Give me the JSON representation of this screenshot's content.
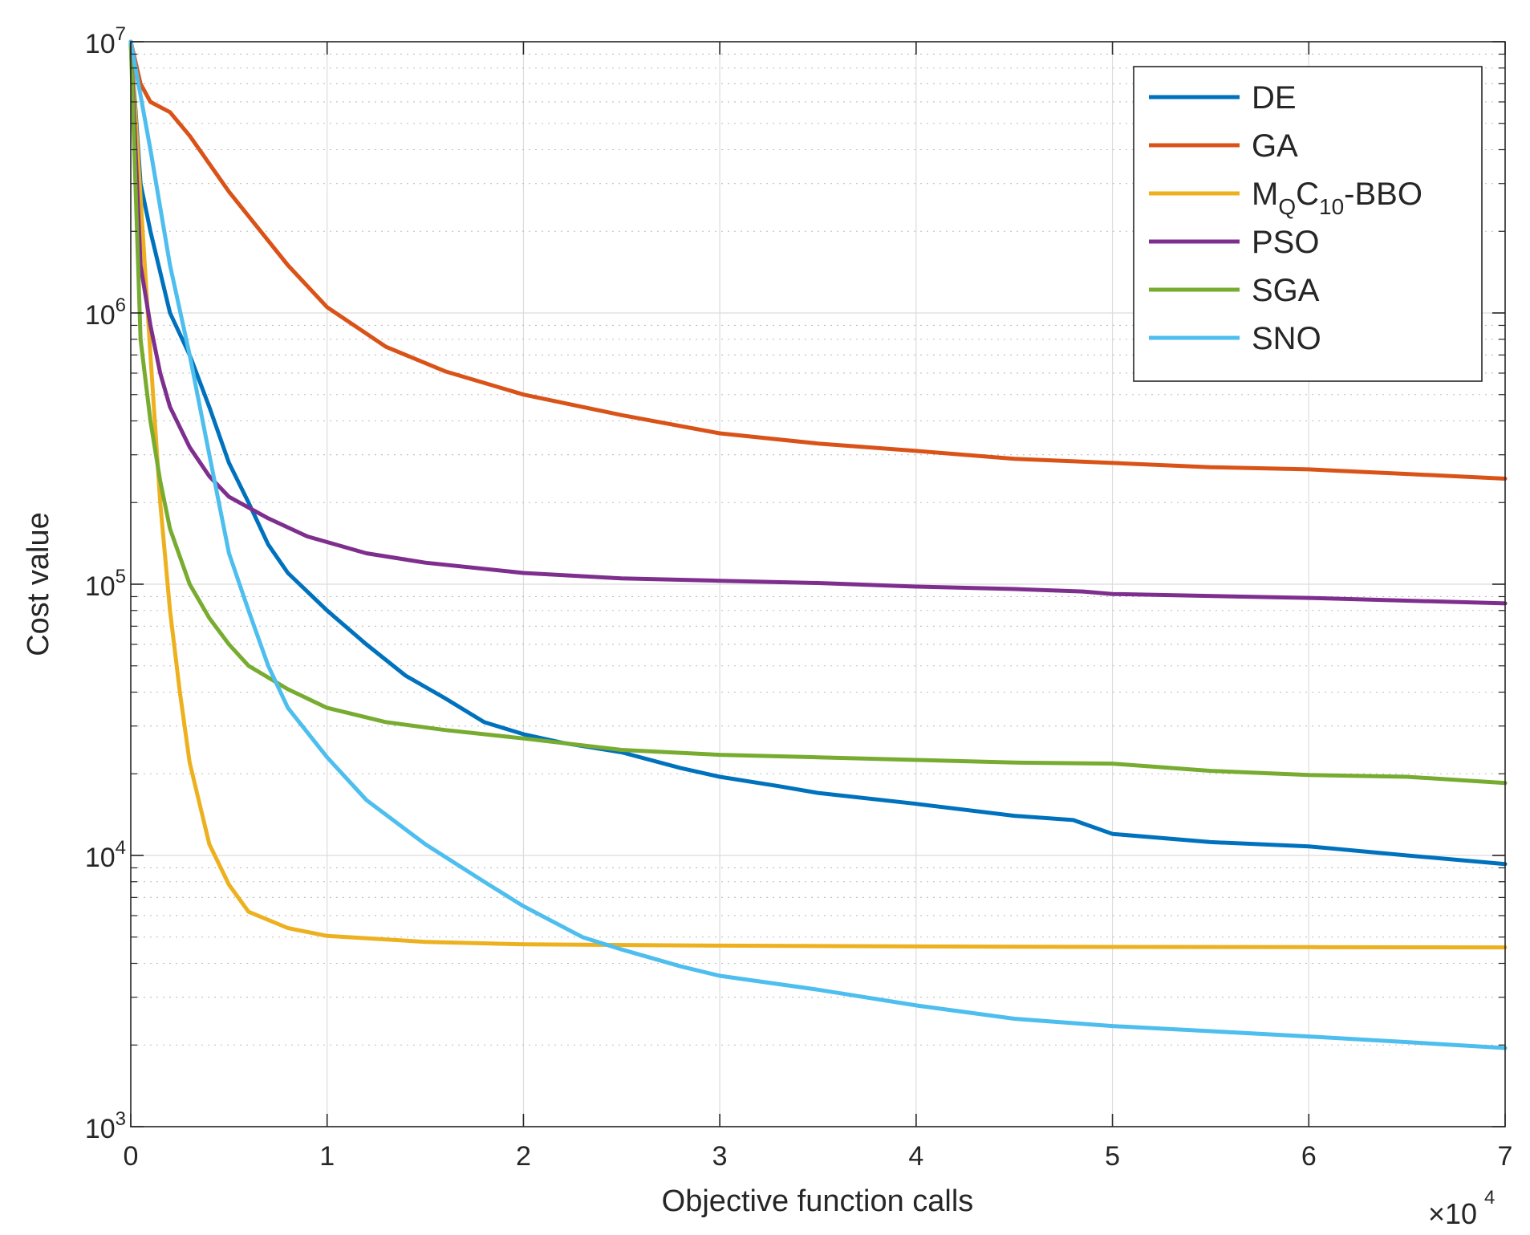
{
  "chart_data": {
    "type": "line",
    "title": "",
    "xlabel": "Objective function calls",
    "ylabel": "Cost value",
    "x_exponent_label": "×10",
    "x_exponent_power": "4",
    "xlim": [
      0,
      7
    ],
    "ylim": [
      1000,
      10000000
    ],
    "y_scale": "log",
    "grid": true,
    "x_ticks": [
      0,
      1,
      2,
      3,
      4,
      5,
      6,
      7
    ],
    "x_tick_labels": [
      "0",
      "1",
      "2",
      "3",
      "4",
      "5",
      "6",
      "7"
    ],
    "y_ticks": [
      {
        "value": 1000,
        "base": "10",
        "exp": "3"
      },
      {
        "value": 10000,
        "base": "10",
        "exp": "4"
      },
      {
        "value": 100000,
        "base": "10",
        "exp": "5"
      },
      {
        "value": 1000000,
        "base": "10",
        "exp": "6"
      },
      {
        "value": 10000000,
        "base": "10",
        "exp": "7"
      }
    ],
    "legend_position": "top-right",
    "series": [
      {
        "name": "DE",
        "color": "#0072BD",
        "x": [
          0,
          0.05,
          0.1,
          0.2,
          0.3,
          0.4,
          0.5,
          0.6,
          0.7,
          0.8,
          1.0,
          1.2,
          1.4,
          1.6,
          1.8,
          2.0,
          2.2,
          2.5,
          2.8,
          3.0,
          3.3,
          3.5,
          4.0,
          4.5,
          4.8,
          5.0,
          5.5,
          6.0,
          6.5,
          7.0
        ],
        "y": [
          10000000,
          3000000,
          2000000,
          1000000,
          700000,
          450000,
          280000,
          200000,
          140000,
          110000,
          80000,
          60000,
          46000,
          38000,
          31000,
          28000,
          26000,
          24000,
          21000,
          19500,
          18000,
          17000,
          15500,
          14000,
          13500,
          12000,
          11200,
          10800,
          10000,
          9300
        ]
      },
      {
        "name": "GA",
        "color": "#D95319",
        "x": [
          0,
          0.05,
          0.1,
          0.2,
          0.3,
          0.5,
          0.8,
          1.0,
          1.3,
          1.6,
          2.0,
          2.5,
          3.0,
          3.5,
          4.0,
          4.5,
          5.0,
          5.5,
          6.0,
          6.5,
          7.0
        ],
        "y": [
          10000000,
          7000000,
          6000000,
          5500000,
          4500000,
          2800000,
          1500000,
          1050000,
          750000,
          610000,
          500000,
          420000,
          360000,
          330000,
          310000,
          290000,
          280000,
          270000,
          265000,
          255000,
          245000
        ]
      },
      {
        "name": "M<sub>Q</sub>C<sub>10</sub>-BBO",
        "legend_main": "M",
        "legend_sub1": "Q",
        "legend_mid": "C",
        "legend_sub2": "10",
        "legend_tail": "-BBO",
        "color": "#EDB120",
        "x": [
          0,
          0.1,
          0.15,
          0.2,
          0.25,
          0.3,
          0.4,
          0.5,
          0.6,
          0.8,
          1.0,
          1.5,
          2.0,
          3.0,
          4.0,
          5.0,
          6.0,
          7.0
        ],
        "y": [
          10000000,
          700000,
          200000,
          80000,
          40000,
          22000,
          11000,
          7800,
          6200,
          5400,
          5050,
          4800,
          4700,
          4650,
          4620,
          4600,
          4590,
          4580
        ]
      },
      {
        "name": "PSO",
        "color": "#7E2F8E",
        "x": [
          0,
          0.05,
          0.1,
          0.15,
          0.2,
          0.3,
          0.4,
          0.5,
          0.7,
          0.9,
          1.2,
          1.5,
          2.0,
          2.5,
          3.0,
          3.5,
          4.0,
          4.5,
          4.85,
          5.0,
          6.0,
          7.0
        ],
        "y": [
          10000000,
          1500000,
          900000,
          600000,
          450000,
          320000,
          250000,
          210000,
          175000,
          150000,
          130000,
          120000,
          110000,
          105000,
          103000,
          101000,
          98000,
          96000,
          94000,
          92000,
          89000,
          85000
        ]
      },
      {
        "name": "SGA",
        "color": "#77AC30",
        "x": [
          0,
          0.05,
          0.1,
          0.15,
          0.2,
          0.3,
          0.4,
          0.5,
          0.6,
          0.8,
          1.0,
          1.3,
          1.6,
          2.0,
          2.5,
          3.0,
          3.5,
          4.0,
          4.5,
          5.0,
          5.5,
          6.0,
          6.5,
          7.0
        ],
        "y": [
          10000000,
          800000,
          400000,
          240000,
          160000,
          100000,
          75000,
          60000,
          50000,
          41000,
          35000,
          31000,
          29000,
          27000,
          24500,
          23500,
          23000,
          22500,
          22000,
          21800,
          20500,
          19800,
          19500,
          18500
        ]
      },
      {
        "name": "SNO",
        "color": "#4DBEEE",
        "x": [
          0,
          0.1,
          0.2,
          0.3,
          0.4,
          0.5,
          0.6,
          0.7,
          0.8,
          1.0,
          1.2,
          1.5,
          1.8,
          2.0,
          2.3,
          2.5,
          2.8,
          3.0,
          3.5,
          4.0,
          4.5,
          5.0,
          5.5,
          6.0,
          6.5,
          7.0
        ],
        "y": [
          10000000,
          4000000,
          1500000,
          700000,
          300000,
          130000,
          80000,
          50000,
          35000,
          23000,
          16000,
          11000,
          8000,
          6500,
          5000,
          4500,
          3900,
          3600,
          3200,
          2800,
          2500,
          2350,
          2250,
          2150,
          2050,
          1950
        ]
      }
    ]
  }
}
